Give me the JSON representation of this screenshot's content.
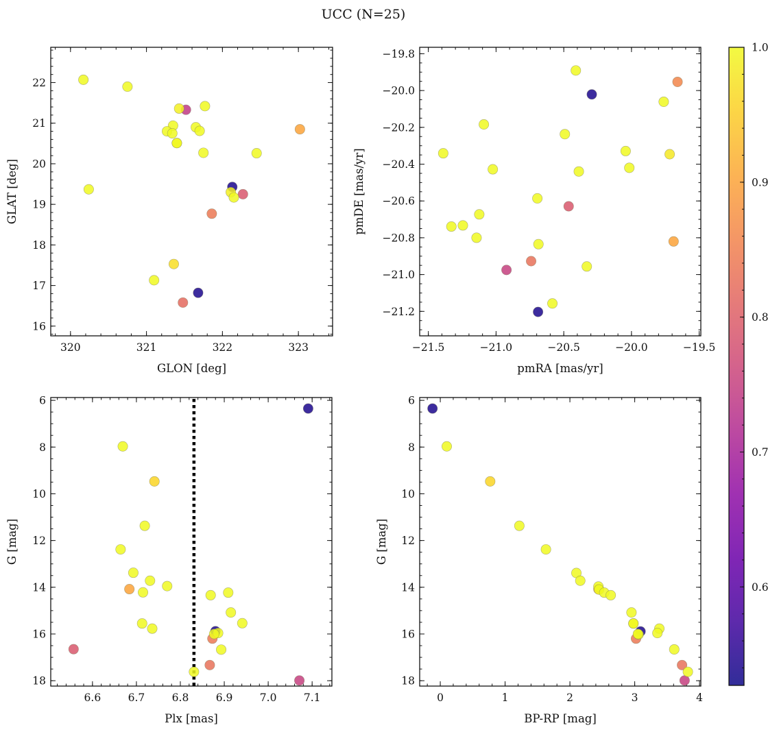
{
  "figure": {
    "title": "UCC (N=25)"
  },
  "colorbar": {
    "cmap": "plasma",
    "range": [
      0.527,
      1.0
    ],
    "ticks": [
      0.6,
      0.7,
      0.8,
      0.9,
      1.0
    ],
    "tick_labels": [
      "0.6",
      "0.7",
      "0.8",
      "0.9",
      "1.0"
    ],
    "minor_step": 0.02
  },
  "chart_data": [
    {
      "type": "scatter",
      "name": "glon-glat",
      "xlabel": "GLON [deg]",
      "ylabel": "GLAT [deg]",
      "xlim": [
        319.74,
        323.45
      ],
      "ylim": [
        15.76,
        22.87
      ],
      "y_inverted": false,
      "xticks": [
        320,
        321,
        322,
        323
      ],
      "xtick_labels": [
        "320",
        "321",
        "322",
        "323"
      ],
      "yticks": [
        16,
        17,
        18,
        19,
        20,
        21,
        22
      ],
      "ytick_labels": [
        "16",
        "17",
        "18",
        "19",
        "20",
        "21",
        "22"
      ],
      "x_minor_step": 0.2,
      "y_minor_step": 0.2,
      "points": [
        [
          320.17,
          22.07,
          1.0
        ],
        [
          320.75,
          21.9,
          1.0
        ],
        [
          321.43,
          21.36,
          0.99
        ],
        [
          321.52,
          21.33,
          0.74
        ],
        [
          321.77,
          21.42,
          1.0
        ],
        [
          321.35,
          20.94,
          1.0
        ],
        [
          321.27,
          20.8,
          1.0
        ],
        [
          321.34,
          20.75,
          1.0
        ],
        [
          321.4,
          20.51,
          1.0
        ],
        [
          321.4,
          20.51,
          0.99
        ],
        [
          321.65,
          20.9,
          1.0
        ],
        [
          321.7,
          20.81,
          1.0
        ],
        [
          321.75,
          20.27,
          1.0
        ],
        [
          322.45,
          20.26,
          1.0
        ],
        [
          323.02,
          20.85,
          0.9
        ],
        [
          320.24,
          19.37,
          1.0
        ],
        [
          322.13,
          19.43,
          0.54
        ],
        [
          322.11,
          19.3,
          0.99
        ],
        [
          322.15,
          19.17,
          1.0
        ],
        [
          322.27,
          19.25,
          0.79
        ],
        [
          321.86,
          18.77,
          0.84
        ],
        [
          321.36,
          17.53,
          0.97
        ],
        [
          321.1,
          17.13,
          1.0
        ],
        [
          321.68,
          16.82,
          0.54
        ],
        [
          321.48,
          16.58,
          0.82
        ]
      ]
    },
    {
      "type": "scatter",
      "name": "pmra-pmde",
      "xlabel": "pmRA [mas/yr]",
      "ylabel": "pmDE [mas/yr]",
      "xlim": [
        -21.564,
        -19.488
      ],
      "ylim": [
        -21.333,
        -19.765
      ],
      "y_inverted": false,
      "xticks": [
        -21.5,
        -21.0,
        -20.5,
        -20.0,
        -19.5
      ],
      "xtick_labels": [
        "−21.5",
        "−21.0",
        "−20.5",
        "−20.0",
        "−19.5"
      ],
      "yticks": [
        -21.2,
        -21.0,
        -20.8,
        -20.6,
        -20.4,
        -20.2,
        -20.0,
        -19.8
      ],
      "ytick_labels": [
        "−21.2",
        "−21.0",
        "−20.8",
        "−20.6",
        "−20.4",
        "−20.2",
        "−20.0",
        "−19.8"
      ],
      "x_minor_step": 0.1,
      "y_minor_step": 0.05,
      "points": [
        [
          -20.411,
          -19.891,
          1.0
        ],
        [
          -20.293,
          -20.021,
          0.54
        ],
        [
          -19.66,
          -19.953,
          0.86
        ],
        [
          -19.762,
          -20.061,
          1.0
        ],
        [
          -21.09,
          -20.184,
          1.0
        ],
        [
          -20.492,
          -20.237,
          1.0
        ],
        [
          -21.39,
          -20.341,
          1.0
        ],
        [
          -20.043,
          -20.329,
          1.0
        ],
        [
          -19.718,
          -20.346,
          0.98
        ],
        [
          -21.024,
          -20.428,
          1.0
        ],
        [
          -20.016,
          -20.42,
          1.0
        ],
        [
          -20.389,
          -20.44,
          1.0
        ],
        [
          -20.695,
          -20.586,
          1.0
        ],
        [
          -20.464,
          -20.629,
          0.79
        ],
        [
          -21.124,
          -20.673,
          1.0
        ],
        [
          -21.245,
          -20.733,
          1.0
        ],
        [
          -21.33,
          -20.739,
          1.0
        ],
        [
          -21.144,
          -20.8,
          1.0
        ],
        [
          -20.687,
          -20.835,
          1.0
        ],
        [
          -19.689,
          -20.82,
          0.9
        ],
        [
          -20.741,
          -20.927,
          0.83
        ],
        [
          -20.33,
          -20.956,
          1.0
        ],
        [
          -20.923,
          -20.975,
          0.75
        ],
        [
          -20.584,
          -21.157,
          1.0
        ],
        [
          -20.69,
          -21.203,
          0.54
        ]
      ]
    },
    {
      "type": "scatter",
      "name": "plx-g",
      "xlabel": "Plx [mas]",
      "ylabel": "G [mag]",
      "xlim": [
        6.505,
        7.145
      ],
      "ylim": [
        5.88,
        18.23
      ],
      "y_inverted": true,
      "xticks": [
        6.6,
        6.7,
        6.8,
        6.9,
        7.0,
        7.1
      ],
      "xtick_labels": [
        "6.6",
        "6.7",
        "6.8",
        "6.9",
        "7.0",
        "7.1"
      ],
      "yticks": [
        6,
        8,
        10,
        12,
        14,
        16,
        18
      ],
      "ytick_labels": [
        "6",
        "8",
        "10",
        "12",
        "14",
        "16",
        "18"
      ],
      "x_minor_step": 0.02,
      "y_minor_step": 0.5,
      "vline": 6.831,
      "points": [
        [
          7.091,
          6.35,
          0.54
        ],
        [
          6.669,
          7.97,
          1.0
        ],
        [
          6.741,
          9.47,
          0.96
        ],
        [
          6.719,
          11.37,
          1.0
        ],
        [
          6.664,
          12.38,
          1.0
        ],
        [
          6.693,
          13.38,
          1.0
        ],
        [
          6.731,
          13.72,
          1.0
        ],
        [
          6.77,
          13.95,
          1.0
        ],
        [
          6.684,
          14.08,
          0.9
        ],
        [
          6.715,
          14.22,
          1.0
        ],
        [
          6.869,
          14.34,
          1.0
        ],
        [
          6.909,
          14.23,
          1.0
        ],
        [
          6.915,
          15.08,
          1.0
        ],
        [
          6.941,
          15.54,
          1.0
        ],
        [
          6.713,
          15.55,
          1.0
        ],
        [
          6.736,
          15.77,
          1.0
        ],
        [
          6.88,
          15.88,
          0.54
        ],
        [
          6.886,
          15.96,
          1.0
        ],
        [
          6.873,
          16.2,
          0.84
        ],
        [
          6.877,
          16.0,
          1.0
        ],
        [
          6.893,
          16.67,
          1.0
        ],
        [
          6.557,
          16.65,
          0.79
        ],
        [
          6.867,
          17.33,
          0.83
        ],
        [
          6.831,
          17.62,
          1.0
        ],
        [
          7.071,
          17.99,
          0.75
        ]
      ]
    },
    {
      "type": "scatter",
      "name": "bprp-g",
      "xlabel": "BP-RP [mag]",
      "ylabel": "G [mag]",
      "xlim": [
        -0.318,
        4.02
      ],
      "ylim": [
        5.88,
        18.23
      ],
      "y_inverted": true,
      "xticks": [
        0,
        1,
        2,
        3,
        4
      ],
      "xtick_labels": [
        "0",
        "1",
        "2",
        "3",
        "4"
      ],
      "yticks": [
        6,
        8,
        10,
        12,
        14,
        16,
        18
      ],
      "ytick_labels": [
        "6",
        "8",
        "10",
        "12",
        "14",
        "16",
        "18"
      ],
      "x_minor_step": 0.2,
      "y_minor_step": 0.5,
      "points": [
        [
          -0.12,
          6.35,
          0.54
        ],
        [
          0.1,
          7.97,
          1.0
        ],
        [
          0.77,
          9.47,
          0.96
        ],
        [
          1.22,
          11.37,
          1.0
        ],
        [
          1.63,
          12.38,
          1.0
        ],
        [
          2.1,
          13.39,
          1.0
        ],
        [
          2.16,
          13.72,
          1.0
        ],
        [
          2.44,
          14.08,
          0.9
        ],
        [
          2.44,
          13.97,
          1.0
        ],
        [
          2.45,
          14.1,
          1.0
        ],
        [
          2.53,
          14.23,
          1.0
        ],
        [
          2.63,
          14.34,
          1.0
        ],
        [
          2.95,
          15.08,
          1.0
        ],
        [
          2.98,
          15.55,
          1.0
        ],
        [
          2.98,
          15.55,
          0.99
        ],
        [
          3.09,
          15.89,
          0.54
        ],
        [
          3.38,
          15.77,
          1.0
        ],
        [
          3.35,
          15.96,
          1.0
        ],
        [
          3.02,
          16.2,
          0.84
        ],
        [
          3.06,
          16.02,
          1.0
        ],
        [
          3.05,
          16.0,
          1.0
        ],
        [
          3.61,
          16.66,
          1.0
        ],
        [
          3.73,
          17.33,
          0.83
        ],
        [
          3.82,
          17.62,
          1.0
        ],
        [
          3.77,
          17.99,
          0.75
        ]
      ]
    }
  ]
}
